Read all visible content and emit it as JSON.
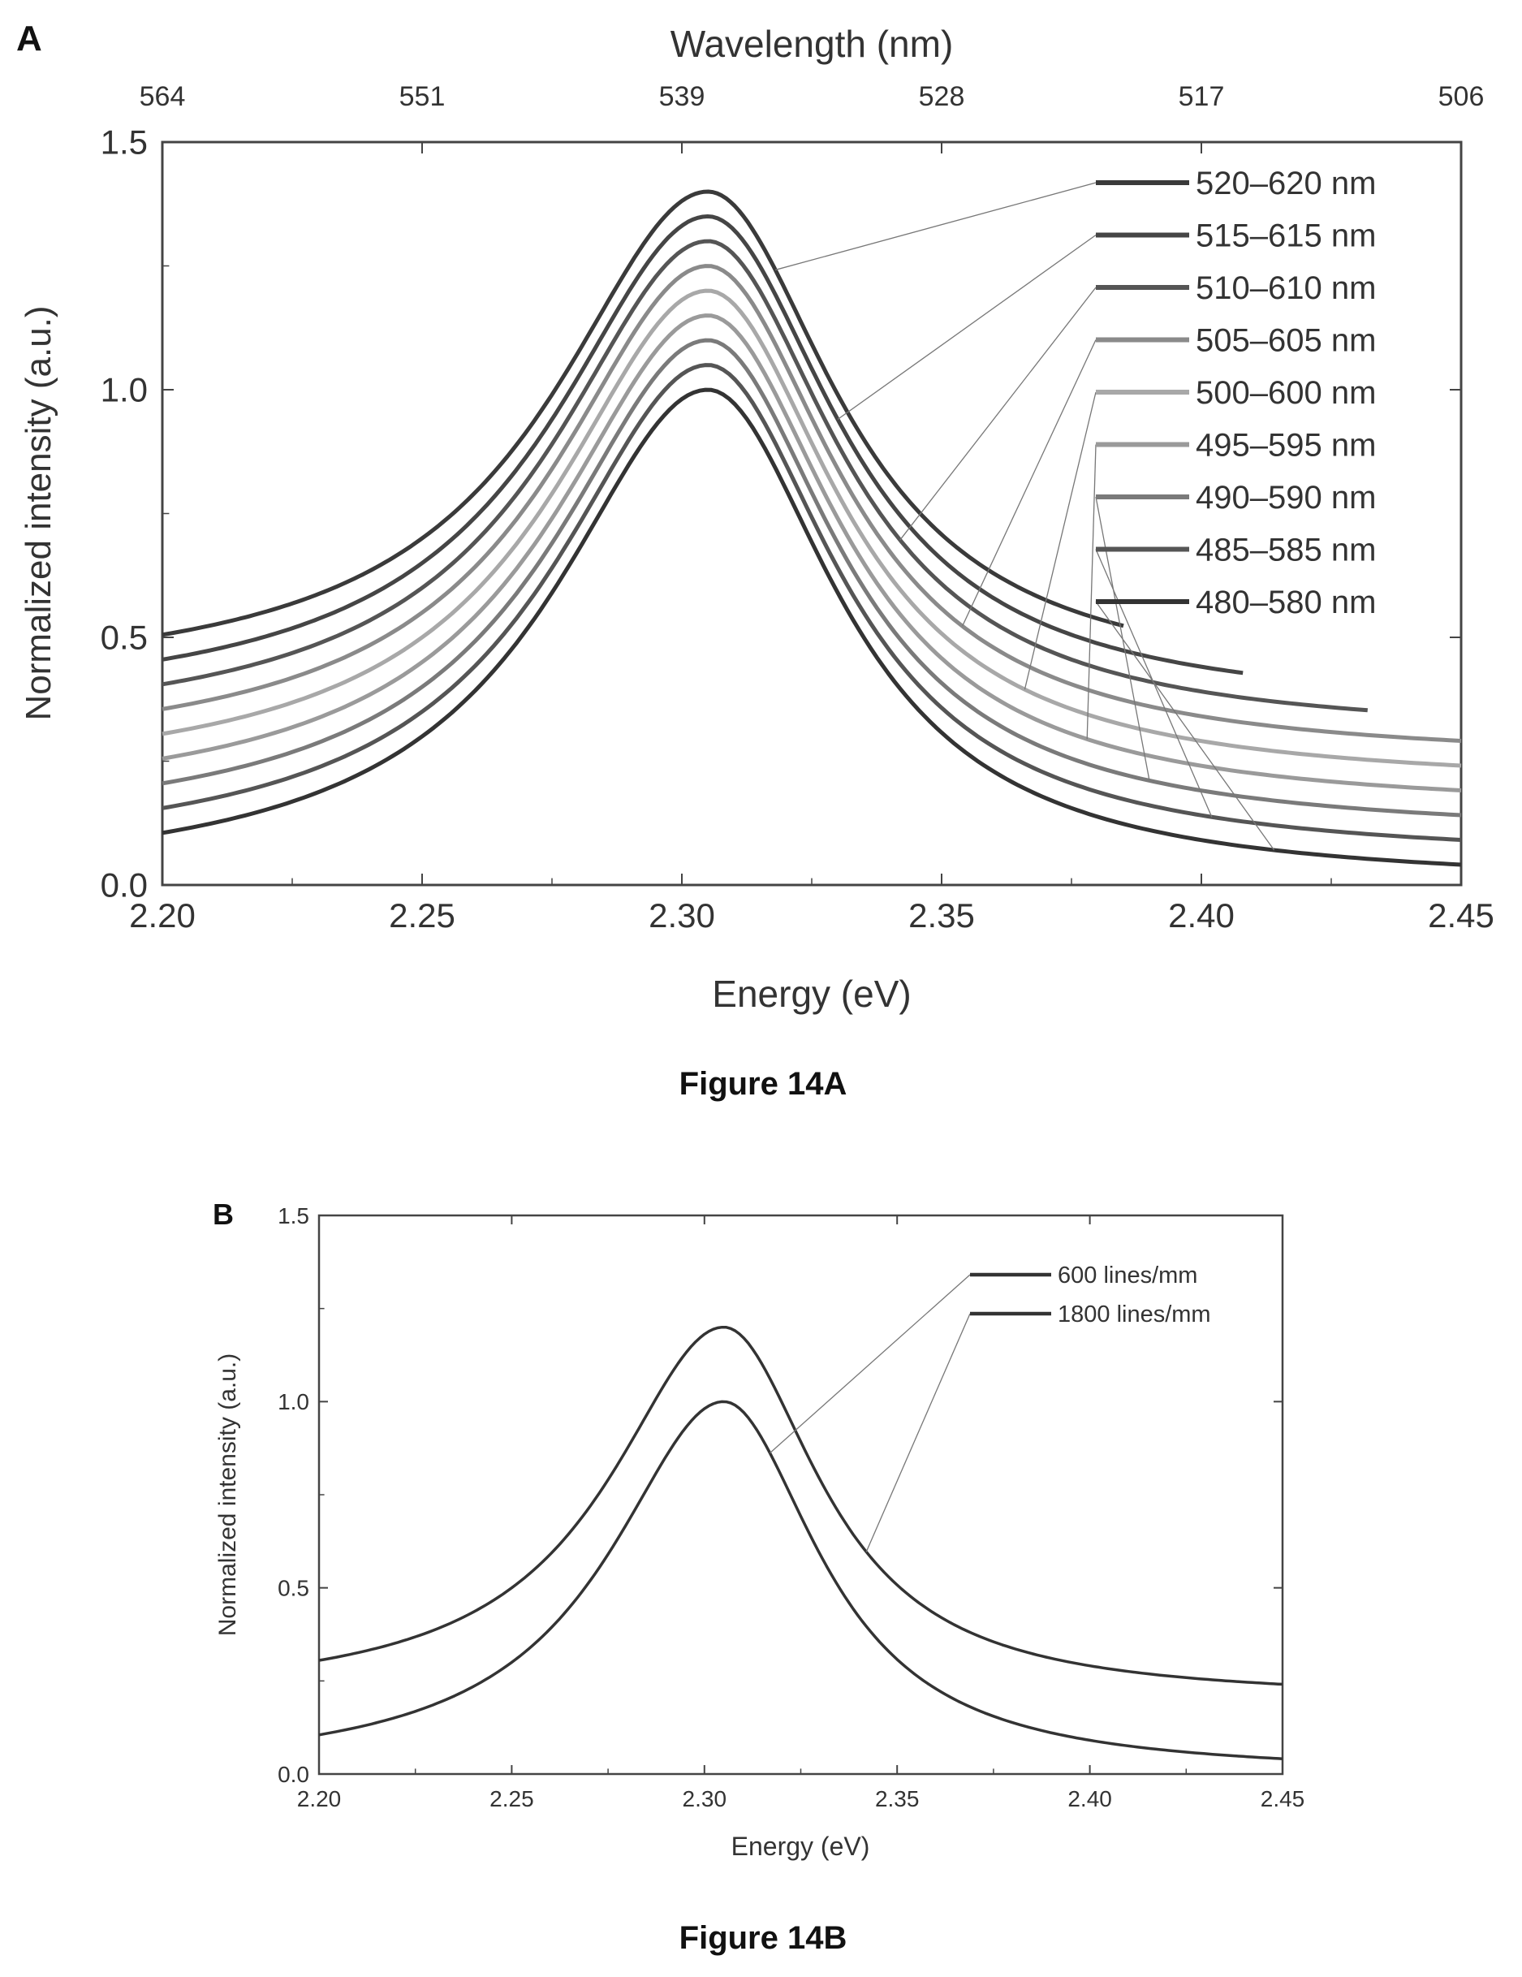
{
  "figure_a": {
    "panel_label": "A",
    "caption": "Figure 14A"
  },
  "figure_b": {
    "panel_label": "B",
    "caption": "Figure 14B"
  },
  "chart_data": [
    {
      "type": "line",
      "panel": "A",
      "xlabel": "Energy (eV)",
      "ylabel": "Normalized intensity (a.u.)",
      "top_xlabel": "Wavelength (nm)",
      "xlim": [
        2.2,
        2.45
      ],
      "ylim": [
        0.0,
        1.5
      ],
      "x_ticks": [
        "2.20",
        "2.25",
        "2.30",
        "2.35",
        "2.40",
        "2.45"
      ],
      "y_ticks": [
        "0.0",
        "0.5",
        "1.0",
        "1.5"
      ],
      "top_ticks": [
        {
          "energy": 2.2,
          "label": "564"
        },
        {
          "energy": 2.25,
          "label": "551"
        },
        {
          "energy": 2.3,
          "label": "539"
        },
        {
          "energy": 2.35,
          "label": "528"
        },
        {
          "energy": 2.4,
          "label": "517"
        },
        {
          "energy": 2.45,
          "label": "506"
        }
      ],
      "peak_energy": 2.305,
      "series": [
        {
          "name": "520–620 nm",
          "offset": 0.4,
          "x_end": 2.385,
          "color": "#3a3a3a"
        },
        {
          "name": "515–615 nm",
          "offset": 0.35,
          "x_end": 2.408,
          "color": "#454545"
        },
        {
          "name": "510–610 nm",
          "offset": 0.3,
          "x_end": 2.432,
          "color": "#555555"
        },
        {
          "name": "505–605 nm",
          "offset": 0.25,
          "x_end": 2.45,
          "color": "#8a8a8a"
        },
        {
          "name": "500–600 nm",
          "offset": 0.2,
          "x_end": 2.45,
          "color": "#a8a8a8"
        },
        {
          "name": "495–595 nm",
          "offset": 0.15,
          "x_end": 2.45,
          "color": "#9a9a9a"
        },
        {
          "name": "490–590 nm",
          "offset": 0.1,
          "x_end": 2.45,
          "color": "#7a7a7a"
        },
        {
          "name": "485–585 nm",
          "offset": 0.05,
          "x_end": 2.45,
          "color": "#555555"
        },
        {
          "name": "480–580 nm",
          "offset": 0.0,
          "x_end": 2.45,
          "color": "#333333"
        }
      ],
      "grid": false,
      "legend_position": "right"
    },
    {
      "type": "line",
      "panel": "B",
      "xlabel": "Energy (eV)",
      "ylabel": "Normalized intensity (a.u.)",
      "xlim": [
        2.2,
        2.45
      ],
      "ylim": [
        0.0,
        1.5
      ],
      "x_ticks": [
        "2.20",
        "2.25",
        "2.30",
        "2.35",
        "2.40",
        "2.45"
      ],
      "y_ticks": [
        "0.0",
        "0.5",
        "1.0",
        "1.5"
      ],
      "peak_energy": 2.305,
      "series": [
        {
          "name": "600 lines/mm",
          "offset": 0.0,
          "x_end": 2.45,
          "color": "#333333"
        },
        {
          "name": "1800 lines/mm",
          "offset": 0.2,
          "x_end": 2.45,
          "color": "#333333"
        }
      ],
      "grid": false,
      "legend_position": "top-right"
    }
  ]
}
